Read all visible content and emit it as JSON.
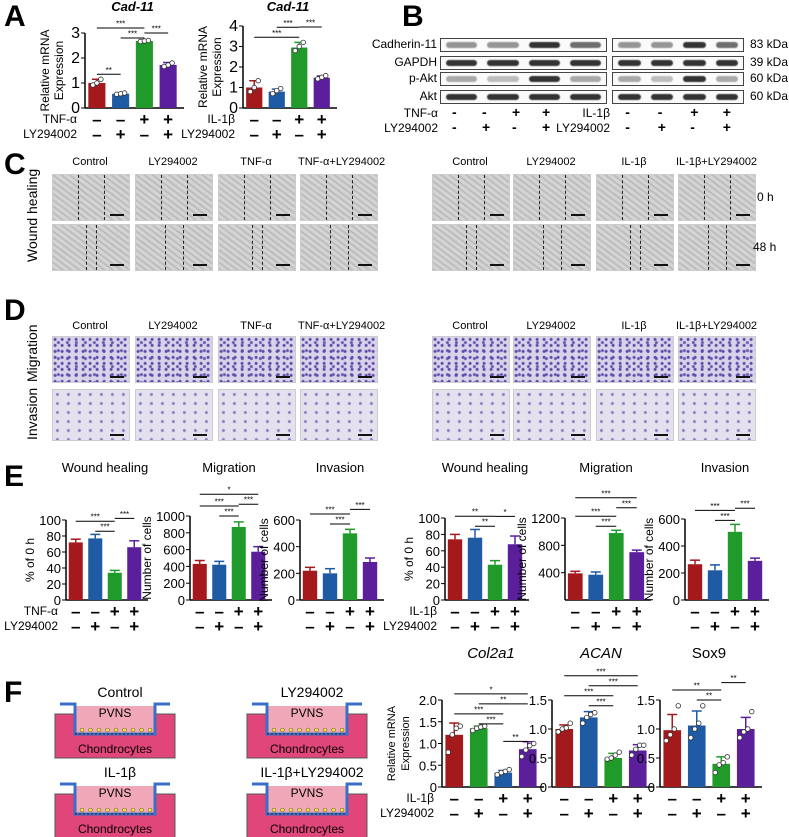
{
  "panels": {
    "A": "A",
    "B": "B",
    "C": "C",
    "D": "D",
    "E": "E",
    "F": "F"
  },
  "colors": {
    "red": "#a3191c",
    "blue": "#1f5aa5",
    "green": "#1f9a2b",
    "purple": "#5b1f9c"
  },
  "blot": {
    "rows": [
      "Cadherin-11",
      "GAPDH",
      "p-Akt",
      "Akt"
    ],
    "kda": [
      "83 kDa",
      "39 kDa",
      "60 kDa",
      "60 kDa"
    ],
    "left_treat": [
      {
        "label": "TNF-α",
        "signs": [
          "-",
          "-",
          "+",
          "+"
        ]
      },
      {
        "label": "LY294002",
        "signs": [
          "-",
          "+",
          "-",
          "+"
        ]
      }
    ],
    "right_treat": [
      {
        "label": "IL-1β",
        "signs": [
          "-",
          "-",
          "+",
          "+"
        ]
      },
      {
        "label": "LY294002",
        "signs": [
          "-",
          "+",
          "-",
          "+"
        ]
      }
    ]
  },
  "images": {
    "left_headers": [
      "Control",
      "LY294002",
      "TNF-α",
      "TNF-α+LY294002"
    ],
    "right_headers": [
      "Control",
      "LY294002",
      "IL-1β",
      "IL-1β+LY294002"
    ],
    "wound_label": "Wound healing",
    "time_0": "0 h",
    "time_48": "48 h",
    "migration_label": "Migration",
    "invasion_label": "Invasion"
  },
  "diagrams": {
    "groups": [
      "Control",
      "LY294002",
      "IL-1β",
      "IL-1β+LY294002"
    ],
    "upper": "PVNS",
    "lower": "Chondrocytes"
  },
  "chart_data": [
    {
      "id": "A1",
      "type": "bar",
      "title": "Cad-11",
      "italic": true,
      "ylabel": "Relative mRNA Expression",
      "ylim": [
        0,
        3
      ],
      "yticks": [
        0,
        1,
        2,
        3
      ],
      "values": [
        1.0,
        0.57,
        2.68,
        1.72
      ],
      "errors": [
        0.15,
        0.03,
        0.03,
        0.1
      ],
      "colors": [
        "red",
        "blue",
        "green",
        "purple"
      ],
      "points": [
        [
          0.92,
          1.0,
          1.15
        ],
        [
          0.55,
          0.57,
          0.6
        ],
        [
          2.66,
          2.68,
          2.7
        ],
        [
          1.66,
          1.72,
          1.8
        ]
      ],
      "treat": [
        {
          "label": "TNF-α",
          "signs": [
            "-",
            "-",
            "+",
            "+"
          ]
        },
        {
          "label": "LY294002",
          "signs": [
            "-",
            "+",
            "-",
            "+"
          ]
        }
      ],
      "sig": [
        [
          0,
          1,
          "**",
          1.35
        ],
        [
          0,
          2,
          "***",
          3.0
        ],
        [
          1,
          2,
          "***",
          2.8
        ],
        [
          2,
          3,
          "***",
          3.0
        ]
      ]
    },
    {
      "id": "A2",
      "type": "bar",
      "title": "Cad-11",
      "italic": true,
      "ylabel": "Relative mRNA Expression",
      "ylim": [
        0,
        4
      ],
      "yticks": [
        0,
        1,
        2,
        3,
        4
      ],
      "values": [
        1.0,
        0.8,
        2.95,
        1.48
      ],
      "errors": [
        0.33,
        0.12,
        0.25,
        0.08
      ],
      "colors": [
        "red",
        "blue",
        "green",
        "purple"
      ],
      "points": [
        [
          0.8,
          1.0,
          1.33
        ],
        [
          0.7,
          0.85,
          0.95
        ],
        [
          2.8,
          3.0,
          3.2
        ],
        [
          1.42,
          1.5,
          1.58
        ]
      ],
      "treat": [
        {
          "label": "IL-1β",
          "signs": [
            "-",
            "-",
            "+",
            "+"
          ]
        },
        {
          "label": "LY294002",
          "signs": [
            "-",
            "+",
            "-",
            "+"
          ]
        }
      ],
      "sig": [
        [
          0,
          2,
          "***",
          3.45
        ],
        [
          1,
          2,
          "***",
          3.75
        ],
        [
          2,
          3,
          "***",
          3.95
        ]
      ]
    },
    {
      "id": "E1",
      "type": "bar",
      "title": "Wound healing",
      "ylabel": "% of 0 h",
      "ylim": [
        0,
        100
      ],
      "yticks": [
        0,
        20,
        40,
        60,
        80,
        100
      ],
      "values": [
        72,
        77,
        34,
        66
      ],
      "errors": [
        4,
        5,
        3,
        8
      ],
      "colors": [
        "red",
        "blue",
        "green",
        "purple"
      ],
      "treat": [
        {
          "label": "TNF-α",
          "signs": [
            "-",
            "-",
            "+",
            "+"
          ]
        },
        {
          "label": "LY294002",
          "signs": [
            "-",
            "+",
            "-",
            "+"
          ]
        }
      ],
      "sig": [
        [
          0,
          2,
          "***",
          92
        ],
        [
          1,
          2,
          "***",
          86
        ],
        [
          2,
          3,
          "***",
          102
        ]
      ]
    },
    {
      "id": "E2",
      "type": "bar",
      "title": "Migration",
      "ylabel": "Number of cells",
      "ylim": [
        0,
        1000
      ],
      "yticks": [
        0,
        200,
        400,
        600,
        800,
        1000
      ],
      "values": [
        430,
        420,
        870,
        575
      ],
      "errors": [
        40,
        40,
        60,
        60
      ],
      "colors": [
        "red",
        "blue",
        "green",
        "purple"
      ],
      "treat": [
        {
          "label": "",
          "signs": [
            "-",
            "-",
            "+",
            "+"
          ]
        },
        {
          "label": "",
          "signs": [
            "-",
            "+",
            "-",
            "+"
          ]
        }
      ],
      "sig": [
        [
          0,
          2,
          "***",
          1070
        ],
        [
          1,
          2,
          "***",
          1000
        ],
        [
          0,
          3,
          "*",
          1230
        ],
        [
          2,
          3,
          "***",
          1140
        ]
      ]
    },
    {
      "id": "E3",
      "type": "bar",
      "title": "Invasion",
      "ylabel": "Number of cells",
      "ylim": [
        0,
        600
      ],
      "yticks": [
        0,
        200,
        400,
        600
      ],
      "values": [
        220,
        200,
        500,
        285
      ],
      "errors": [
        25,
        35,
        30,
        30
      ],
      "colors": [
        "red",
        "blue",
        "green",
        "purple"
      ],
      "treat": [
        {
          "label": "",
          "signs": [
            "-",
            "-",
            "+",
            "+"
          ]
        },
        {
          "label": "",
          "signs": [
            "-",
            "+",
            "-",
            "+"
          ]
        }
      ],
      "sig": [
        [
          0,
          2,
          "***",
          630
        ],
        [
          1,
          2,
          "***",
          570
        ],
        [
          2,
          3,
          "***",
          680
        ]
      ]
    },
    {
      "id": "E4",
      "type": "bar",
      "title": "Wound healing",
      "ylabel": "% of 0 h",
      "ylim": [
        0,
        100
      ],
      "yticks": [
        0,
        20,
        40,
        60,
        80,
        100
      ],
      "values": [
        74,
        76,
        43,
        68
      ],
      "errors": [
        6,
        10,
        5,
        10
      ],
      "colors": [
        "red",
        "blue",
        "green",
        "purple"
      ],
      "treat": [
        {
          "label": "IL-1β",
          "signs": [
            "-",
            "-",
            "+",
            "+"
          ]
        },
        {
          "label": "LY294002",
          "signs": [
            "-",
            "+",
            "-",
            "+"
          ]
        }
      ],
      "sig": [
        [
          0,
          2,
          "**",
          96
        ],
        [
          1,
          2,
          "**",
          90
        ],
        [
          2,
          3,
          "*",
          102
        ]
      ]
    },
    {
      "id": "E5",
      "type": "bar",
      "title": "Migration",
      "ylabel": "Number of cells",
      "ylim": [
        0,
        1200
      ],
      "yticks": [
        400,
        800,
        1200
      ],
      "values": [
        390,
        370,
        980,
        700
      ],
      "errors": [
        30,
        40,
        40,
        30
      ],
      "colors": [
        "red",
        "blue",
        "green",
        "purple"
      ],
      "treat": [
        {
          "label": "",
          "signs": [
            "-",
            "-",
            "+",
            "+"
          ]
        },
        {
          "label": "",
          "signs": [
            "-",
            "+",
            "-",
            "+"
          ]
        }
      ],
      "sig": [
        [
          0,
          2,
          "***",
          1170
        ],
        [
          1,
          2,
          "***",
          1080
        ],
        [
          0,
          3,
          "***",
          1450
        ],
        [
          2,
          3,
          "***",
          1350
        ]
      ]
    },
    {
      "id": "E6",
      "type": "bar",
      "title": "Invasion",
      "ylabel": "Number of cells",
      "ylim": [
        0,
        600
      ],
      "yticks": [
        0,
        200,
        400,
        600
      ],
      "values": [
        265,
        220,
        505,
        290
      ],
      "errors": [
        30,
        40,
        55,
        20
      ],
      "colors": [
        "red",
        "blue",
        "green",
        "purple"
      ],
      "treat": [
        {
          "label": "",
          "signs": [
            "-",
            "-",
            "+",
            "+"
          ]
        },
        {
          "label": "",
          "signs": [
            "-",
            "+",
            "-",
            "+"
          ]
        }
      ],
      "sig": [
        [
          0,
          2,
          "***",
          630
        ],
        [
          1,
          2,
          "***",
          590
        ],
        [
          2,
          3,
          "***",
          680
        ]
      ]
    },
    {
      "id": "F1",
      "type": "bar",
      "title": "Col2a1",
      "italic": true,
      "ylabel": "Relative mRNA Expression",
      "ylim": [
        0,
        2
      ],
      "yticks": [
        "0",
        "0.5",
        "1.0",
        "1.5",
        "2.0"
      ],
      "values": [
        1.2,
        1.35,
        0.33,
        0.87
      ],
      "errors": [
        0.27,
        0.05,
        0.05,
        0.17
      ],
      "colors": [
        "red",
        "green",
        "blue",
        "purple"
      ],
      "points": [
        [
          0.8,
          1.2,
          1.35,
          1.4
        ],
        [
          1.3,
          1.35,
          1.38,
          1.4
        ],
        [
          0.28,
          0.33,
          0.36,
          0.4
        ],
        [
          0.7,
          0.85,
          0.95,
          1.0
        ]
      ],
      "treat": [
        {
          "label": "IL-1β",
          "signs": [
            "-",
            "-",
            "+",
            "+"
          ]
        },
        {
          "label": "LY294002",
          "signs": [
            "-",
            "+",
            "-",
            "+"
          ]
        }
      ],
      "sig": [
        [
          0,
          2,
          "***",
          1.6
        ],
        [
          1,
          2,
          "***",
          1.45
        ],
        [
          0,
          3,
          "*",
          1.85
        ],
        [
          1,
          3,
          "**",
          1.73
        ],
        [
          2,
          3,
          "**",
          1.05
        ]
      ]
    },
    {
      "id": "F2",
      "type": "bar",
      "title": "ACAN",
      "italic": true,
      "ylabel": "",
      "ylim": [
        0,
        1.5
      ],
      "yticks": [
        "0",
        "0.5",
        "1.0",
        "1.5"
      ],
      "values": [
        1.0,
        1.2,
        0.5,
        0.63
      ],
      "errors": [
        0.07,
        0.1,
        0.08,
        0.1
      ],
      "colors": [
        "red",
        "blue",
        "green",
        "purple"
      ],
      "points": [
        [
          0.95,
          1.0,
          1.02,
          1.1
        ],
        [
          1.1,
          1.2,
          1.25,
          1.28
        ],
        [
          0.48,
          0.5,
          0.55,
          0.6
        ],
        [
          0.55,
          0.65,
          0.72,
          0.72
        ]
      ],
      "treat": [
        {
          "label": "",
          "signs": [
            "-",
            "-",
            "+",
            "+"
          ]
        },
        {
          "label": "",
          "signs": [
            "-",
            "+",
            "-",
            "+"
          ]
        }
      ],
      "sig": [
        [
          0,
          2,
          "***",
          1.55
        ],
        [
          1,
          2,
          "***",
          1.4
        ],
        [
          0,
          3,
          "***",
          1.85
        ],
        [
          1,
          3,
          "***",
          1.7
        ]
      ]
    },
    {
      "id": "F3",
      "type": "bar",
      "title": "Sox9",
      "italic": false,
      "ylabel": "",
      "ylim": [
        0,
        1.5
      ],
      "yticks": [
        "0",
        "0.5",
        "1.0",
        "1.5"
      ],
      "values": [
        0.98,
        1.06,
        0.4,
        1.0
      ],
      "errors": [
        0.27,
        0.25,
        0.12,
        0.2
      ],
      "colors": [
        "red",
        "blue",
        "green",
        "purple"
      ],
      "points": [
        [
          0.8,
          0.9,
          1.0,
          1.4
        ],
        [
          0.85,
          1.0,
          1.1,
          1.4
        ],
        [
          0.25,
          0.38,
          0.42,
          0.52
        ],
        [
          0.85,
          0.95,
          1.0,
          1.3
        ]
      ],
      "treat": [
        {
          "label": "",
          "signs": [
            "-",
            "-",
            "+",
            "+"
          ]
        },
        {
          "label": "",
          "signs": [
            "-",
            "+",
            "-",
            "+"
          ]
        }
      ],
      "sig": [
        [
          0,
          2,
          "**",
          1.65
        ],
        [
          1,
          2,
          "**",
          1.5
        ],
        [
          2,
          3,
          "**",
          1.8
        ]
      ]
    }
  ]
}
